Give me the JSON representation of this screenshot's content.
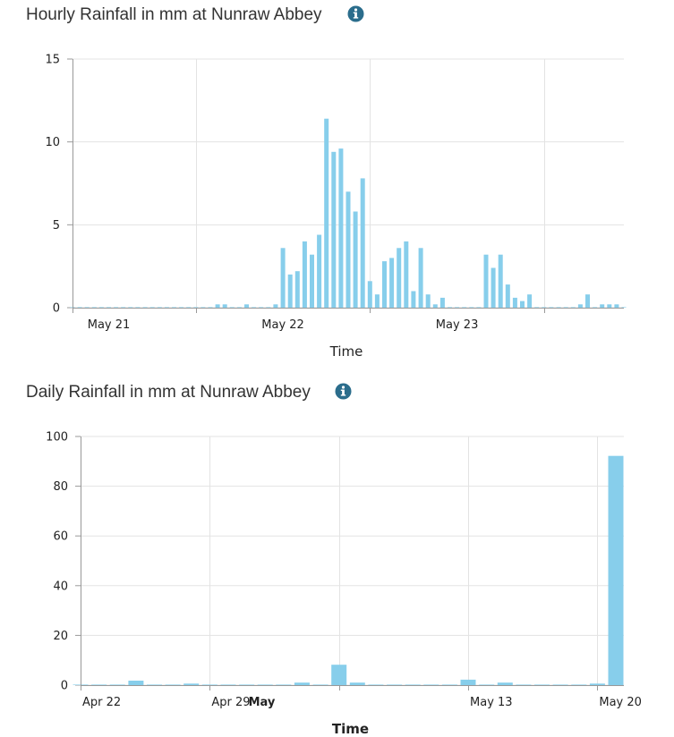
{
  "accent_color": "#87ceeb",
  "icon_color": "#2b6d8c",
  "charts": [
    {
      "title": "Hourly Rainfall in mm at Nunraw Abbey",
      "info_icon": "info-circle-icon"
    },
    {
      "title": "Daily Rainfall in mm at Nunraw Abbey",
      "info_icon": "info-circle-icon"
    }
  ],
  "chart_data": [
    {
      "type": "bar",
      "title": "Hourly Rainfall in mm at Nunraw Abbey",
      "xlabel": "Time",
      "ylabel": "",
      "ylim": [
        0,
        15
      ],
      "yticks": [
        0,
        5,
        10,
        15
      ],
      "xlim": [
        "2013-05-20T19:00",
        "2013-05-23T23:00"
      ],
      "xticks": [
        {
          "x": "2013-05-21T00:00",
          "label": "May 21"
        },
        {
          "x": "2013-05-22T00:00",
          "label": "May 22"
        },
        {
          "x": "2013-05-23T00:00",
          "label": "May 23"
        }
      ],
      "x_gridlines": [
        "2013-05-20T19:00",
        "2013-05-21T12:00",
        "2013-05-22T12:00",
        "2013-05-23T12:00"
      ],
      "grid": true,
      "series": [
        {
          "color": "#87ceeb",
          "points": [
            [
              "2013-05-20T19:00",
              0
            ],
            [
              "2013-05-20T20:00",
              0
            ],
            [
              "2013-05-20T21:00",
              0
            ],
            [
              "2013-05-20T22:00",
              0
            ],
            [
              "2013-05-20T23:00",
              0
            ],
            [
              "2013-05-21T00:00",
              0
            ],
            [
              "2013-05-21T01:00",
              0
            ],
            [
              "2013-05-21T02:00",
              0
            ],
            [
              "2013-05-21T03:00",
              0
            ],
            [
              "2013-05-21T04:00",
              0
            ],
            [
              "2013-05-21T05:00",
              0
            ],
            [
              "2013-05-21T06:00",
              0
            ],
            [
              "2013-05-21T07:00",
              0
            ],
            [
              "2013-05-21T08:00",
              0
            ],
            [
              "2013-05-21T09:00",
              0
            ],
            [
              "2013-05-21T10:00",
              0
            ],
            [
              "2013-05-21T11:00",
              0
            ],
            [
              "2013-05-21T12:00",
              0
            ],
            [
              "2013-05-21T13:00",
              0
            ],
            [
              "2013-05-21T14:00",
              0
            ],
            [
              "2013-05-21T15:00",
              0.2
            ],
            [
              "2013-05-21T16:00",
              0.2
            ],
            [
              "2013-05-21T17:00",
              0
            ],
            [
              "2013-05-21T18:00",
              0
            ],
            [
              "2013-05-21T19:00",
              0.2
            ],
            [
              "2013-05-21T20:00",
              0
            ],
            [
              "2013-05-21T21:00",
              0
            ],
            [
              "2013-05-21T22:00",
              0
            ],
            [
              "2013-05-21T23:00",
              0.2
            ],
            [
              "2013-05-22T00:00",
              3.6
            ],
            [
              "2013-05-22T01:00",
              2
            ],
            [
              "2013-05-22T02:00",
              2.2
            ],
            [
              "2013-05-22T03:00",
              4
            ],
            [
              "2013-05-22T04:00",
              3.2
            ],
            [
              "2013-05-22T05:00",
              4.4
            ],
            [
              "2013-05-22T06:00",
              11.4
            ],
            [
              "2013-05-22T07:00",
              9.4
            ],
            [
              "2013-05-22T08:00",
              9.6
            ],
            [
              "2013-05-22T09:00",
              7
            ],
            [
              "2013-05-22T10:00",
              5.8
            ],
            [
              "2013-05-22T11:00",
              7.8
            ],
            [
              "2013-05-22T12:00",
              1.6
            ],
            [
              "2013-05-22T13:00",
              0.8
            ],
            [
              "2013-05-22T14:00",
              2.8
            ],
            [
              "2013-05-22T15:00",
              3
            ],
            [
              "2013-05-22T16:00",
              3.6
            ],
            [
              "2013-05-22T17:00",
              4
            ],
            [
              "2013-05-22T18:00",
              1
            ],
            [
              "2013-05-22T19:00",
              3.6
            ],
            [
              "2013-05-22T20:00",
              0.8
            ],
            [
              "2013-05-22T21:00",
              0.2
            ],
            [
              "2013-05-22T22:00",
              0.6
            ],
            [
              "2013-05-22T23:00",
              0
            ],
            [
              "2013-05-23T00:00",
              0
            ],
            [
              "2013-05-23T01:00",
              0
            ],
            [
              "2013-05-23T02:00",
              0
            ],
            [
              "2013-05-23T03:00",
              0
            ],
            [
              "2013-05-23T04:00",
              3.2
            ],
            [
              "2013-05-23T05:00",
              2.4
            ],
            [
              "2013-05-23T06:00",
              3.2
            ],
            [
              "2013-05-23T07:00",
              1.4
            ],
            [
              "2013-05-23T08:00",
              0.6
            ],
            [
              "2013-05-23T09:00",
              0.4
            ],
            [
              "2013-05-23T10:00",
              0.8
            ],
            [
              "2013-05-23T11:00",
              0
            ],
            [
              "2013-05-23T12:00",
              0
            ],
            [
              "2013-05-23T13:00",
              0
            ],
            [
              "2013-05-23T14:00",
              0
            ],
            [
              "2013-05-23T15:00",
              0
            ],
            [
              "2013-05-23T16:00",
              0
            ],
            [
              "2013-05-23T17:00",
              0.2
            ],
            [
              "2013-05-23T18:00",
              0.8
            ],
            [
              "2013-05-23T19:00",
              0
            ],
            [
              "2013-05-23T20:00",
              0.2
            ],
            [
              "2013-05-23T21:00",
              0.2
            ],
            [
              "2013-05-23T22:00",
              0.2
            ],
            [
              "2013-05-23T23:00",
              0
            ]
          ]
        }
      ]
    },
    {
      "type": "bar",
      "title": "Daily Rainfall in mm at Nunraw Abbey",
      "xlabel": "Time",
      "ylabel": "",
      "ylim": [
        0,
        100
      ],
      "yticks": [
        0,
        20,
        40,
        60,
        80,
        100
      ],
      "xlim": [
        "2013-04-22",
        "2013-05-21"
      ],
      "xticks": [
        {
          "x": "2013-04-22",
          "label": "Apr 22",
          "bold": false
        },
        {
          "x": "2013-04-29",
          "label": "Apr 29",
          "bold": false
        },
        {
          "x": "2013-05-01",
          "label": "May",
          "bold": true
        },
        {
          "x": "2013-05-13",
          "label": "May 13",
          "bold": false
        },
        {
          "x": "2013-05-20",
          "label": "May 20",
          "bold": false
        }
      ],
      "x_gridlines": [
        "2013-04-22",
        "2013-04-29",
        "2013-05-06",
        "2013-05-13",
        "2013-05-20"
      ],
      "grid": true,
      "series": [
        {
          "color": "#87ceeb",
          "points": [
            [
              "2013-04-22",
              0
            ],
            [
              "2013-04-23",
              0
            ],
            [
              "2013-04-24",
              0
            ],
            [
              "2013-04-25",
              1.8
            ],
            [
              "2013-04-26",
              0
            ],
            [
              "2013-04-27",
              0
            ],
            [
              "2013-04-28",
              0.6
            ],
            [
              "2013-04-29",
              0
            ],
            [
              "2013-04-30",
              0
            ],
            [
              "2013-05-01",
              0
            ],
            [
              "2013-05-02",
              0
            ],
            [
              "2013-05-03",
              0
            ],
            [
              "2013-05-04",
              1
            ],
            [
              "2013-05-05",
              0
            ],
            [
              "2013-05-06",
              8.2
            ],
            [
              "2013-05-07",
              1
            ],
            [
              "2013-05-08",
              0
            ],
            [
              "2013-05-09",
              0
            ],
            [
              "2013-05-10",
              0
            ],
            [
              "2013-05-11",
              0
            ],
            [
              "2013-05-12",
              0
            ],
            [
              "2013-05-13",
              2.2
            ],
            [
              "2013-05-14",
              0
            ],
            [
              "2013-05-15",
              1
            ],
            [
              "2013-05-16",
              0
            ],
            [
              "2013-05-17",
              0
            ],
            [
              "2013-05-18",
              0
            ],
            [
              "2013-05-19",
              0
            ],
            [
              "2013-05-20",
              0.6
            ],
            [
              "2013-05-21",
              92.2
            ]
          ]
        }
      ]
    }
  ]
}
